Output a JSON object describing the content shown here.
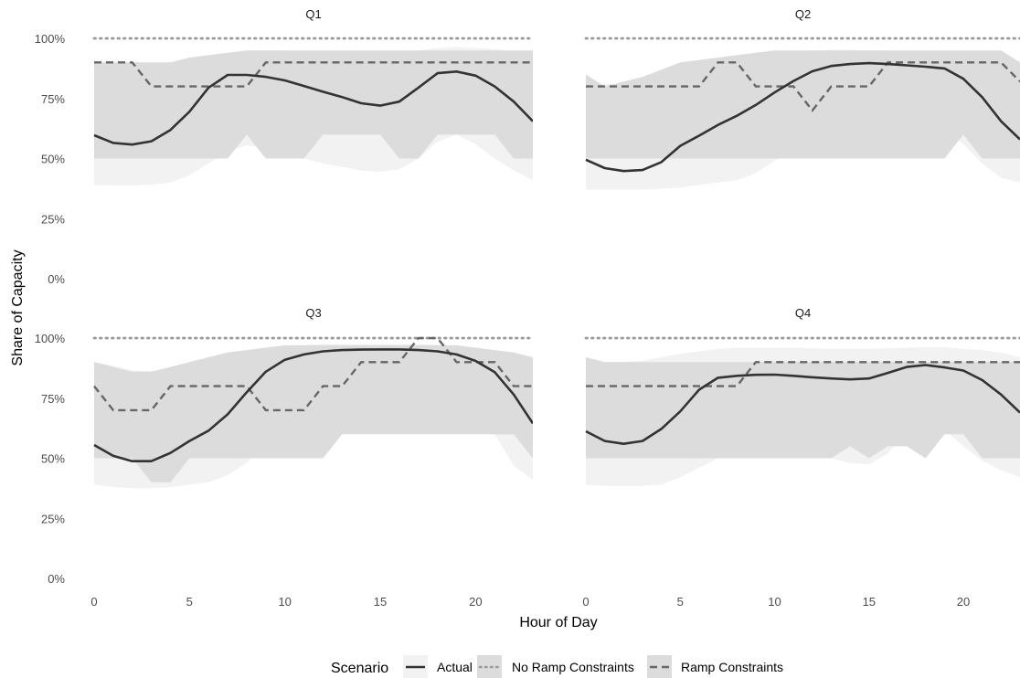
{
  "chart_data": {
    "type": "line",
    "xlabel": "Hour of Day",
    "ylabel": "Share of Capacity",
    "x_ticks": [
      0,
      5,
      10,
      15,
      20
    ],
    "y_ticks": [
      "0%",
      "25%",
      "50%",
      "75%",
      "100%"
    ],
    "xlim": [
      0,
      23
    ],
    "ylim": [
      0,
      1
    ],
    "legend": {
      "title": "Scenario",
      "placement": "bottom",
      "entries": [
        "Actual",
        "No Ramp Constraints",
        "Ramp Constraints"
      ]
    },
    "colors": {
      "actual": "#333333",
      "no_ramp": "#999999",
      "ramp": "#666666",
      "band_outer": "#f2f2f2",
      "band_inner": "#dcdcdc"
    },
    "panels": [
      {
        "label": "Q1",
        "actual": [
          0.597,
          0.565,
          0.558,
          0.572,
          0.619,
          0.695,
          0.795,
          0.848,
          0.848,
          0.84,
          0.825,
          0.802,
          0.778,
          0.756,
          0.73,
          0.72,
          0.737,
          0.795,
          0.855,
          0.862,
          0.845,
          0.8,
          0.737,
          0.655
        ],
        "no_ramp": [
          1,
          1,
          1,
          1,
          1,
          1,
          1,
          1,
          1,
          1,
          1,
          1,
          1,
          1,
          1,
          1,
          1,
          1,
          1,
          1,
          1,
          1,
          1,
          1
        ],
        "ramp": [
          0.9,
          0.9,
          0.9,
          0.8,
          0.8,
          0.8,
          0.8,
          0.8,
          0.8,
          0.9,
          0.9,
          0.9,
          0.9,
          0.9,
          0.9,
          0.9,
          0.9,
          0.9,
          0.9,
          0.9,
          0.9,
          0.9,
          0.9,
          0.9
        ],
        "band_outer": {
          "low": [
            0.39,
            0.388,
            0.388,
            0.39,
            0.4,
            0.43,
            0.48,
            0.53,
            0.555,
            0.545,
            0.52,
            0.5,
            0.48,
            0.465,
            0.45,
            0.445,
            0.455,
            0.5,
            0.57,
            0.6,
            0.56,
            0.5,
            0.45,
            0.41
          ],
          "high": [
            0.885,
            0.885,
            0.888,
            0.89,
            0.9,
            0.91,
            0.925,
            0.94,
            0.95,
            0.95,
            0.95,
            0.948,
            0.945,
            0.94,
            0.935,
            0.935,
            0.94,
            0.95,
            0.96,
            0.965,
            0.96,
            0.955,
            0.945,
            0.935
          ]
        },
        "band_inner": {
          "low": [
            0.5,
            0.5,
            0.5,
            0.5,
            0.5,
            0.5,
            0.5,
            0.5,
            0.6,
            0.5,
            0.5,
            0.5,
            0.6,
            0.6,
            0.6,
            0.6,
            0.5,
            0.5,
            0.6,
            0.6,
            0.6,
            0.6,
            0.5,
            0.5
          ],
          "high": [
            0.9,
            0.9,
            0.9,
            0.9,
            0.9,
            0.92,
            0.93,
            0.94,
            0.95,
            0.95,
            0.95,
            0.95,
            0.95,
            0.95,
            0.95,
            0.95,
            0.95,
            0.95,
            0.95,
            0.95,
            0.95,
            0.95,
            0.95,
            0.95
          ]
        }
      },
      {
        "label": "Q2",
        "actual": [
          0.495,
          0.46,
          0.448,
          0.452,
          0.485,
          0.553,
          0.595,
          0.64,
          0.678,
          0.723,
          0.775,
          0.823,
          0.863,
          0.885,
          0.893,
          0.897,
          0.893,
          0.888,
          0.882,
          0.875,
          0.832,
          0.755,
          0.655,
          0.58
        ],
        "no_ramp": [
          1,
          1,
          1,
          1,
          1,
          1,
          1,
          1,
          1,
          1,
          1,
          1,
          1,
          1,
          1,
          1,
          1,
          1,
          1,
          1,
          1,
          1,
          1,
          1
        ],
        "ramp": [
          0.8,
          0.8,
          0.8,
          0.8,
          0.8,
          0.8,
          0.8,
          0.9,
          0.9,
          0.8,
          0.8,
          0.8,
          0.7,
          0.8,
          0.8,
          0.8,
          0.9,
          0.9,
          0.9,
          0.9,
          0.9,
          0.9,
          0.9,
          0.82
        ],
        "band_outer": {
          "low": [
            0.37,
            0.37,
            0.37,
            0.37,
            0.375,
            0.38,
            0.39,
            0.4,
            0.41,
            0.44,
            0.49,
            0.54,
            0.58,
            0.615,
            0.645,
            0.655,
            0.655,
            0.64,
            0.63,
            0.62,
            0.56,
            0.48,
            0.42,
            0.4
          ],
          "high": [
            0.82,
            0.81,
            0.81,
            0.82,
            0.84,
            0.865,
            0.88,
            0.895,
            0.905,
            0.92,
            0.935,
            0.945,
            0.95,
            0.952,
            0.952,
            0.95,
            0.95,
            0.945,
            0.94,
            0.935,
            0.925,
            0.91,
            0.895,
            0.875
          ]
        },
        "band_inner": {
          "low": [
            0.5,
            0.5,
            0.5,
            0.5,
            0.5,
            0.5,
            0.5,
            0.5,
            0.5,
            0.5,
            0.5,
            0.5,
            0.5,
            0.5,
            0.5,
            0.5,
            0.5,
            0.5,
            0.5,
            0.5,
            0.6,
            0.5,
            0.5,
            0.5
          ],
          "high": [
            0.85,
            0.8,
            0.82,
            0.84,
            0.87,
            0.9,
            0.91,
            0.92,
            0.93,
            0.94,
            0.95,
            0.95,
            0.95,
            0.95,
            0.95,
            0.95,
            0.95,
            0.95,
            0.95,
            0.95,
            0.95,
            0.95,
            0.95,
            0.9
          ]
        }
      },
      {
        "label": "Q3",
        "actual": [
          0.555,
          0.51,
          0.488,
          0.488,
          0.522,
          0.572,
          0.615,
          0.683,
          0.775,
          0.86,
          0.91,
          0.932,
          0.945,
          0.95,
          0.952,
          0.953,
          0.953,
          0.95,
          0.945,
          0.932,
          0.905,
          0.858,
          0.765,
          0.645
        ],
        "no_ramp": [
          1,
          1,
          1,
          1,
          1,
          1,
          1,
          1,
          1,
          1,
          1,
          1,
          1,
          1,
          1,
          1,
          1,
          1,
          1,
          1,
          1,
          1,
          1,
          1
        ],
        "ramp": [
          0.8,
          0.7,
          0.7,
          0.7,
          0.8,
          0.8,
          0.8,
          0.8,
          0.8,
          0.7,
          0.7,
          0.7,
          0.8,
          0.8,
          0.9,
          0.9,
          0.9,
          1.0,
          1.0,
          0.9,
          0.9,
          0.9,
          0.8,
          0.8
        ],
        "band_outer": {
          "low": [
            0.39,
            0.38,
            0.375,
            0.375,
            0.38,
            0.39,
            0.4,
            0.43,
            0.48,
            0.56,
            0.66,
            0.75,
            0.81,
            0.855,
            0.875,
            0.885,
            0.885,
            0.88,
            0.86,
            0.8,
            0.71,
            0.6,
            0.47,
            0.41
          ],
          "high": [
            0.9,
            0.885,
            0.865,
            0.862,
            0.875,
            0.9,
            0.92,
            0.935,
            0.95,
            0.96,
            0.968,
            0.972,
            0.975,
            0.975,
            0.975,
            0.975,
            0.975,
            0.975,
            0.972,
            0.968,
            0.96,
            0.95,
            0.935,
            0.92
          ]
        },
        "band_inner": {
          "low": [
            0.5,
            0.5,
            0.5,
            0.4,
            0.4,
            0.5,
            0.5,
            0.5,
            0.5,
            0.5,
            0.5,
            0.5,
            0.5,
            0.6,
            0.6,
            0.6,
            0.6,
            0.6,
            0.6,
            0.6,
            0.6,
            0.6,
            0.6,
            0.5
          ],
          "high": [
            0.9,
            0.88,
            0.86,
            0.86,
            0.88,
            0.9,
            0.92,
            0.94,
            0.95,
            0.96,
            0.97,
            0.97,
            0.97,
            0.97,
            0.97,
            0.97,
            0.97,
            0.97,
            0.97,
            0.97,
            0.96,
            0.95,
            0.94,
            0.92
          ]
        }
      },
      {
        "label": "Q4",
        "actual": [
          0.612,
          0.572,
          0.56,
          0.572,
          0.622,
          0.695,
          0.785,
          0.835,
          0.843,
          0.847,
          0.848,
          0.843,
          0.837,
          0.832,
          0.828,
          0.832,
          0.855,
          0.88,
          0.888,
          0.878,
          0.865,
          0.825,
          0.765,
          0.69
        ],
        "no_ramp": [
          1,
          1,
          1,
          1,
          1,
          1,
          1,
          1,
          1,
          1,
          1,
          1,
          1,
          1,
          1,
          1,
          1,
          1,
          1,
          1,
          1,
          1,
          1,
          1
        ],
        "ramp": [
          0.8,
          0.8,
          0.8,
          0.8,
          0.8,
          0.8,
          0.8,
          0.8,
          0.8,
          0.9,
          0.9,
          0.9,
          0.9,
          0.9,
          0.9,
          0.9,
          0.9,
          0.9,
          0.9,
          0.9,
          0.9,
          0.9,
          0.9,
          0.9
        ],
        "band_outer": {
          "low": [
            0.39,
            0.385,
            0.385,
            0.385,
            0.39,
            0.42,
            0.46,
            0.5,
            0.52,
            0.53,
            0.54,
            0.535,
            0.52,
            0.5,
            0.48,
            0.475,
            0.52,
            0.62,
            0.66,
            0.62,
            0.55,
            0.49,
            0.45,
            0.42
          ],
          "high": [
            0.91,
            0.9,
            0.9,
            0.905,
            0.92,
            0.935,
            0.945,
            0.955,
            0.96,
            0.96,
            0.96,
            0.96,
            0.958,
            0.955,
            0.955,
            0.955,
            0.958,
            0.96,
            0.962,
            0.962,
            0.955,
            0.95,
            0.94,
            0.92
          ]
        },
        "band_inner": {
          "low": [
            0.5,
            0.5,
            0.5,
            0.5,
            0.5,
            0.5,
            0.5,
            0.5,
            0.5,
            0.5,
            0.5,
            0.5,
            0.5,
            0.5,
            0.55,
            0.5,
            0.55,
            0.55,
            0.5,
            0.6,
            0.6,
            0.5,
            0.5,
            0.5
          ],
          "high": [
            0.92,
            0.9,
            0.9,
            0.9,
            0.9,
            0.9,
            0.9,
            0.9,
            0.9,
            0.9,
            0.9,
            0.9,
            0.9,
            0.9,
            0.9,
            0.9,
            0.9,
            0.9,
            0.9,
            0.9,
            0.9,
            0.9,
            0.9,
            0.9
          ]
        }
      }
    ]
  }
}
